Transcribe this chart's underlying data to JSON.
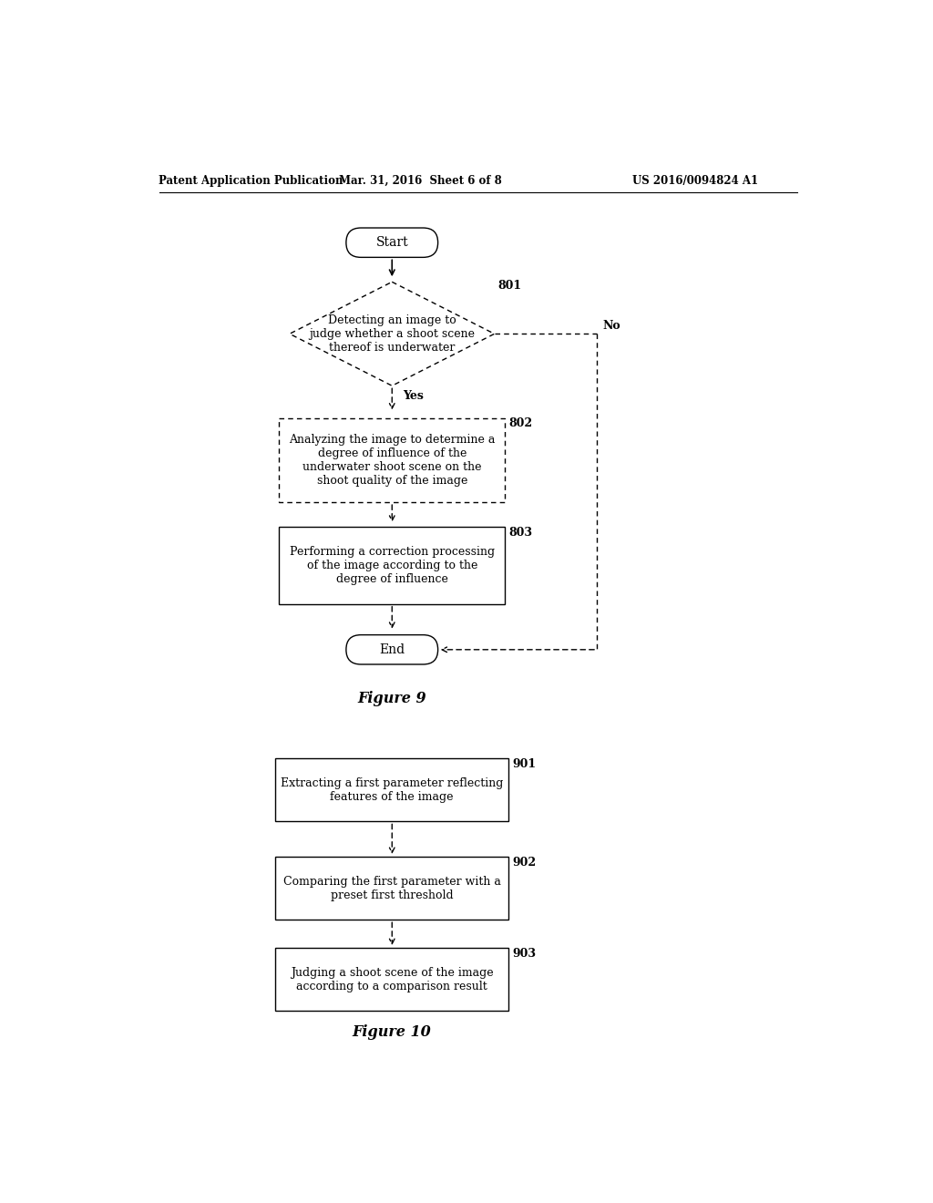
{
  "bg_color": "#ffffff",
  "header_left": "Patent Application Publication",
  "header_mid": "Mar. 31, 2016  Sheet 6 of 8",
  "header_right": "US 2016/0094824 A1",
  "fig9_title": "Figure 9",
  "fig10_title": "Figure 10",
  "fig9": {
    "start_label": "Start",
    "end_label": "End",
    "diamond_label": "Detecting an image to\njudge whether a shoot scene\nthereof is underwater",
    "diamond_ref": "801",
    "box802_label": "Analyzing the image to determine a\ndegree of influence of the\nunderwater shoot scene on the\nshoot quality of the image",
    "box802_ref": "802",
    "box803_label": "Performing a correction processing\nof the image according to the\ndegree of influence",
    "box803_ref": "803",
    "yes_label": "Yes",
    "no_label": "No"
  },
  "fig10": {
    "box901_label": "Extracting a first parameter reflecting\nfeatures of the image",
    "box901_ref": "901",
    "box902_label": "Comparing the first parameter with a\npreset first threshold",
    "box902_ref": "902",
    "box903_label": "Judging a shoot scene of the image\naccording to a comparison result",
    "box903_ref": "903"
  }
}
